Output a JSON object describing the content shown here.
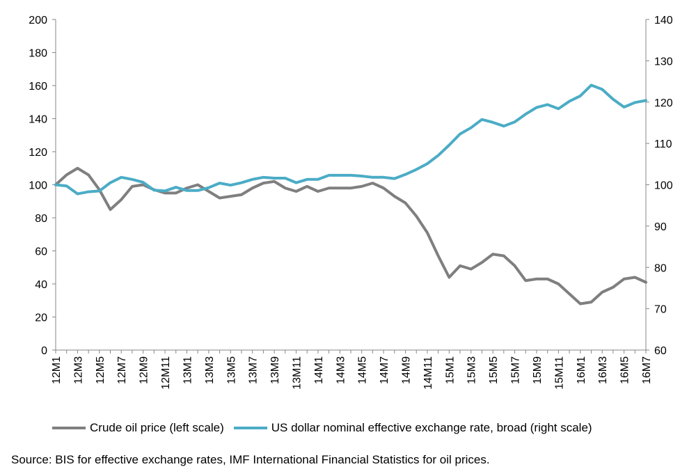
{
  "chart_data": {
    "type": "line",
    "title": "",
    "xlabel": "",
    "ylabel_left": "",
    "ylabel_right": "",
    "x": [
      "12M1",
      "12M2",
      "12M3",
      "12M4",
      "12M5",
      "12M6",
      "12M7",
      "12M8",
      "12M9",
      "12M10",
      "12M11",
      "12M12",
      "13M1",
      "13M2",
      "13M3",
      "13M4",
      "13M5",
      "13M6",
      "13M7",
      "13M8",
      "13M9",
      "13M10",
      "13M11",
      "13M12",
      "14M1",
      "14M2",
      "14M3",
      "14M4",
      "14M5",
      "14M6",
      "14M7",
      "14M8",
      "14M9",
      "14M10",
      "14M11",
      "14M12",
      "15M1",
      "15M2",
      "15M3",
      "15M4",
      "15M5",
      "15M6",
      "15M7",
      "15M8",
      "15M9",
      "15M10",
      "15M11",
      "15M12",
      "16M1",
      "16M2",
      "16M3",
      "16M4",
      "16M5",
      "16M6",
      "16M7"
    ],
    "x_tick_labels": [
      "12M1",
      "12M3",
      "12M5",
      "12M7",
      "12M9",
      "12M11",
      "13M1",
      "13M3",
      "13M5",
      "13M7",
      "13M9",
      "13M11",
      "14M1",
      "14M3",
      "14M5",
      "14M7",
      "14M9",
      "14M11",
      "15M1",
      "15M3",
      "15M5",
      "15M7",
      "15M9",
      "15M11",
      "16M1",
      "16M3",
      "16M5",
      "16M7"
    ],
    "y_left": {
      "range": [
        0,
        200
      ],
      "ticks": [
        "0",
        "20",
        "40",
        "60",
        "80",
        "100",
        "120",
        "140",
        "160",
        "180",
        "200"
      ]
    },
    "y_right": {
      "range": [
        60,
        140
      ],
      "ticks": [
        "60",
        "70",
        "80",
        "90",
        "100",
        "110",
        "120",
        "130",
        "140"
      ]
    },
    "grid": false,
    "legend_position": "bottom",
    "series": [
      {
        "name": "Crude oil price (left scale)",
        "axis": "left",
        "color": "#7f7f7f",
        "values": [
          100,
          106,
          110,
          106,
          97,
          85,
          91,
          99,
          100,
          97,
          95,
          95,
          98,
          100,
          96,
          92,
          93,
          94,
          98,
          101,
          102,
          98,
          96,
          99,
          96,
          98,
          98,
          98,
          99,
          101,
          98,
          93,
          89,
          81,
          71,
          57,
          44,
          51,
          49,
          53,
          58,
          57,
          51,
          42,
          43,
          43,
          40,
          34,
          28,
          29,
          35,
          38,
          43,
          44,
          41
        ]
      },
      {
        "name": "US dollar nominal effective exchange rate, broad (right scale)",
        "axis": "right",
        "color": "#4bacc6",
        "values": [
          100,
          99.7,
          97.8,
          98.3,
          98.5,
          100.5,
          101.8,
          101.3,
          100.6,
          98.7,
          98.5,
          99.4,
          98.6,
          98.6,
          99.3,
          100.4,
          99.9,
          100.5,
          101.3,
          101.8,
          101.6,
          101.6,
          100.5,
          101.3,
          101.3,
          102.3,
          102.3,
          102.3,
          102.1,
          101.8,
          101.8,
          101.5,
          102.5,
          103.7,
          105.1,
          107.1,
          109.6,
          112.3,
          113.8,
          115.8,
          115.1,
          114.2,
          115.2,
          117.1,
          118.7,
          119.4,
          118.4,
          120.2,
          121.5,
          124.1,
          123.1,
          120.7,
          118.8,
          119.9,
          120.4
        ]
      }
    ],
    "source_note": "Source: BIS for effective exchange rates, IMF International Financial Statistics for oil prices."
  }
}
